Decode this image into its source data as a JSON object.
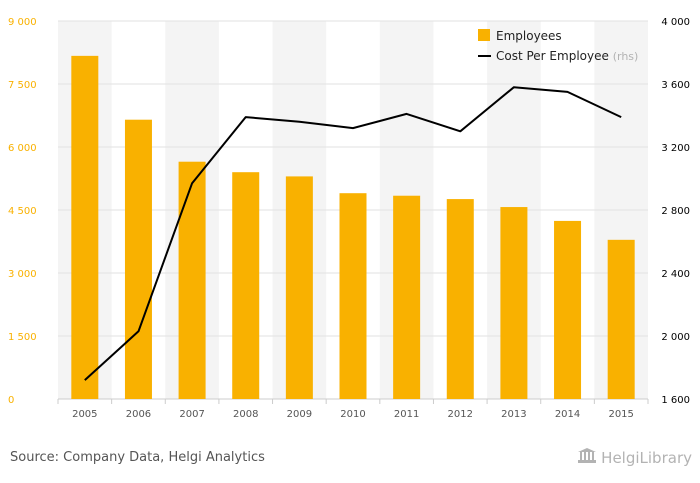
{
  "chart_data": {
    "type": "bar+line",
    "categories": [
      "2005",
      "2006",
      "2007",
      "2008",
      "2009",
      "2010",
      "2011",
      "2012",
      "2013",
      "2014",
      "2015"
    ],
    "series": [
      {
        "name": "Employees",
        "type": "bar",
        "axis": "left",
        "color": "#f9b100",
        "values": [
          8170,
          6650,
          5650,
          5400,
          5300,
          4900,
          4840,
          4760,
          4570,
          4240,
          3790
        ]
      },
      {
        "name": "Cost Per Employee",
        "name_suffix": "(rhs)",
        "type": "line",
        "axis": "right",
        "color": "#000000",
        "values": [
          1720,
          2030,
          2970,
          3390,
          3360,
          3320,
          3410,
          3300,
          3580,
          3550,
          3390
        ]
      }
    ],
    "y_left": {
      "min": 0,
      "max": 9000,
      "ticks": [
        0,
        1500,
        3000,
        4500,
        6000,
        7500,
        9000
      ],
      "tick_labels": [
        "0",
        "1 500",
        "3 000",
        "4 500",
        "6 000",
        "7 500",
        "9 000"
      ],
      "color": "#f9b100"
    },
    "y_right": {
      "min": 1600,
      "max": 4000,
      "ticks": [
        1600,
        2000,
        2400,
        2800,
        3200,
        3600,
        4000
      ],
      "tick_labels": [
        "1 600",
        "2 000",
        "2 400",
        "2 800",
        "3 200",
        "3 600",
        "4 000"
      ],
      "color": "#000000"
    },
    "grid": true,
    "legend_position": "top-right"
  },
  "footer": {
    "source": "Source: Company Data, Helgi Analytics",
    "logo_text": "HelgiLibrary"
  }
}
